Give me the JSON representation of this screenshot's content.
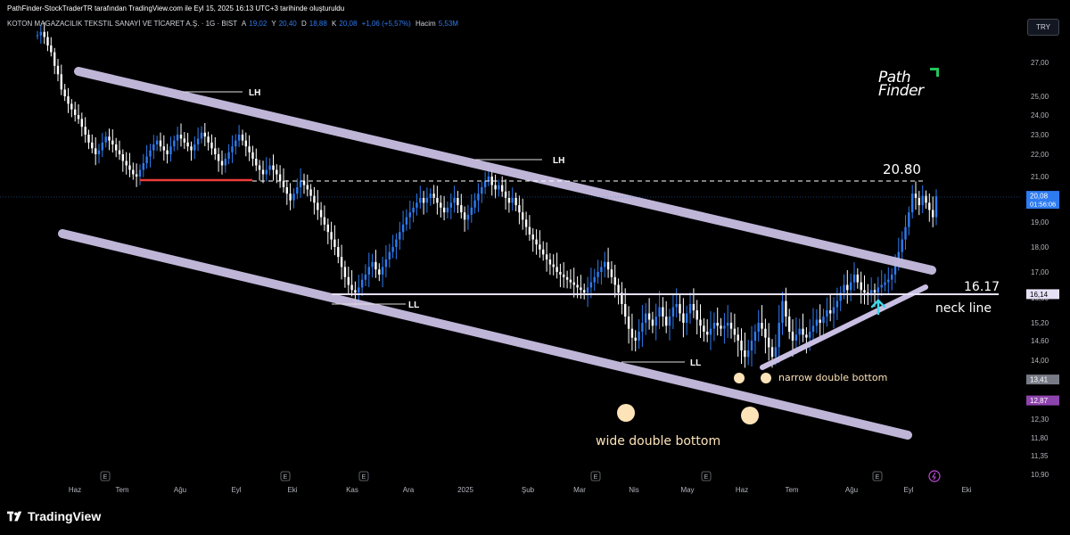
{
  "header": {
    "attribution": "PathFinder-StockTraderTR tarafından TradingView.com ile Eyl 15, 2025 16:13 UTC+3 tarihinde oluşturuldu",
    "symbol": "KOTON MAGAZACILIK TEKSTIL SANAYİ VE TİCARET A.Ş. · 1G · BIST",
    "open_label": "A",
    "open_value": "19,02",
    "high_label": "Y",
    "high_value": "20,40",
    "low_label": "D",
    "low_value": "18,88",
    "close_label": "K",
    "close_value": "20,08",
    "change": "+1,06 (+5,57%)",
    "volume_label": "Hacim",
    "volume_value": "5,53M",
    "currency": "TRY"
  },
  "logo": {
    "line1": "Path",
    "line2": "Finder"
  },
  "footer": {
    "brand": "TradingView"
  },
  "colors": {
    "background": "#000000",
    "candle": "#2e7bf0",
    "candle_light": "#ffffff",
    "channel": "#c9bfe3",
    "support_red": "#ef3b3b",
    "neckline": "#e6e0f5",
    "arrow": "#3fd4e8",
    "circle": "#fde3b8",
    "text_light": "#ffffff",
    "axis_text": "#b2b5be"
  },
  "chart_data": {
    "type": "candlestick",
    "x_labels": [
      "Haz",
      "Tem",
      "Ağu",
      "Eyl",
      "Eki",
      "Kas",
      "Ara",
      "2025",
      "Şub",
      "Mar",
      "Nis",
      "May",
      "Haz",
      "Tem",
      "Ağu",
      "Eyl",
      "Eki"
    ],
    "y_ticks": [
      "27,00",
      "25,00",
      "24,00",
      "23,00",
      "22,00",
      "21,00",
      "20,00",
      "19,00",
      "18,00",
      "17,00",
      "16,00",
      "15,20",
      "14,60",
      "14,00",
      "13,40",
      "12,90",
      "12,30",
      "11,80",
      "11,35",
      "10,90"
    ],
    "y_tick_values": [
      27.0,
      25.0,
      24.0,
      23.0,
      22.0,
      21.0,
      20.0,
      19.0,
      18.0,
      17.0,
      16.0,
      15.2,
      14.6,
      14.0,
      13.4,
      12.9,
      12.3,
      11.8,
      11.35,
      10.9
    ],
    "ylim": [
      10.7,
      29.0
    ],
    "price_badges": [
      {
        "label": "20,08",
        "sub": "01:56:06",
        "value": 20.08,
        "color": "#2e7bf0"
      },
      {
        "label": "16,14",
        "value": 16.14,
        "color": "#e6e0f5"
      },
      {
        "label": "13,41",
        "value": 13.41,
        "color": "#787b86"
      },
      {
        "label": "12,87",
        "value": 12.87,
        "color": "#8e44ad"
      }
    ],
    "closes": [
      28.6,
      28.8,
      28.5,
      28.0,
      27.6,
      26.8,
      26.3,
      25.4,
      25.0,
      24.6,
      24.3,
      24.0,
      23.8,
      23.4,
      23.0,
      22.6,
      22.3,
      22.0,
      22.2,
      22.6,
      22.9,
      22.7,
      22.5,
      22.2,
      22.0,
      21.7,
      21.5,
      21.3,
      21.1,
      21.0,
      21.3,
      21.6,
      21.9,
      22.2,
      22.5,
      22.7,
      22.4,
      22.2,
      22.0,
      22.4,
      22.7,
      23.0,
      22.8,
      22.6,
      22.4,
      22.2,
      22.5,
      22.8,
      23.1,
      22.9,
      22.6,
      22.3,
      22.0,
      21.7,
      21.5,
      21.8,
      22.1,
      22.4,
      22.7,
      23.0,
      22.7,
      22.4,
      22.1,
      21.8,
      21.5,
      21.3,
      21.1,
      21.3,
      21.5,
      21.3,
      21.1,
      20.8,
      20.5,
      20.2,
      19.9,
      20.2,
      20.5,
      20.8,
      20.6,
      20.4,
      20.1,
      19.8,
      19.5,
      19.2,
      18.9,
      18.6,
      18.3,
      18.0,
      17.6,
      17.2,
      16.8,
      16.5,
      16.3,
      16.2,
      16.4,
      16.7,
      16.9,
      17.2,
      17.4,
      17.1,
      16.9,
      17.2,
      17.5,
      17.8,
      18.0,
      18.3,
      18.6,
      18.9,
      19.2,
      19.4,
      19.6,
      19.8,
      20.0,
      19.8,
      20.0,
      20.2,
      20.0,
      19.8,
      19.6,
      19.4,
      19.6,
      19.8,
      20.0,
      19.7,
      19.4,
      19.1,
      19.3,
      19.6,
      19.9,
      20.2,
      20.5,
      20.8,
      21.0,
      20.6,
      20.4,
      20.6,
      20.3,
      20.0,
      19.8,
      20.0,
      19.7,
      19.4,
      19.1,
      18.8,
      18.5,
      18.3,
      18.1,
      17.9,
      17.7,
      17.5,
      17.3,
      17.2,
      17.0,
      16.9,
      16.8,
      16.7,
      16.6,
      16.5,
      16.4,
      16.3,
      16.2,
      16.4,
      16.6,
      16.8,
      17.0,
      17.2,
      17.4,
      17.1,
      16.8,
      16.5,
      16.2,
      15.8,
      15.4,
      15.0,
      14.7,
      14.6,
      14.9,
      15.2,
      15.5,
      15.3,
      15.1,
      15.4,
      15.7,
      15.4,
      15.1,
      15.4,
      15.7,
      15.8,
      15.5,
      15.2,
      15.5,
      15.8,
      15.6,
      15.3,
      15.1,
      14.9,
      14.8,
      15.0,
      15.2,
      15.1,
      15.0,
      15.1,
      15.2,
      15.0,
      14.8,
      14.6,
      14.3,
      14.1,
      14.3,
      14.6,
      14.9,
      15.2,
      15.0,
      14.7,
      14.4,
      14.1,
      14.4,
      15.2,
      15.9,
      15.4,
      14.9,
      14.6,
      14.8,
      15.0,
      14.8,
      14.7,
      14.9,
      15.1,
      15.3,
      15.2,
      15.4,
      15.6,
      15.5,
      15.7,
      15.9,
      16.2,
      16.5,
      16.3,
      16.6,
      16.9,
      16.6,
      16.3,
      16.2,
      16.1,
      16.3,
      16.2,
      16.4,
      16.5,
      16.6,
      16.7,
      16.9,
      17.3,
      17.8,
      18.3,
      18.8,
      19.4,
      20.2,
      20.0,
      19.7,
      20.1,
      19.8,
      19.5,
      19.2,
      20.08
    ],
    "annotations": [
      {
        "text": "LH"
      },
      {
        "text": "LH"
      },
      {
        "text": "LL"
      },
      {
        "text": "LL"
      },
      {
        "text": "20.80",
        "value": 20.8
      },
      {
        "text": "16.17",
        "value": 16.17
      },
      {
        "text": "neck line"
      },
      {
        "text": "narrow double bottom"
      },
      {
        "text": "wide double bottom"
      }
    ],
    "levels": {
      "resistance_dashed": 20.8,
      "neckline": 16.17,
      "red_support": 20.8
    },
    "event_markers": [
      "E",
      "E",
      "E",
      "E",
      "E",
      "E",
      "E"
    ],
    "grid": false
  }
}
